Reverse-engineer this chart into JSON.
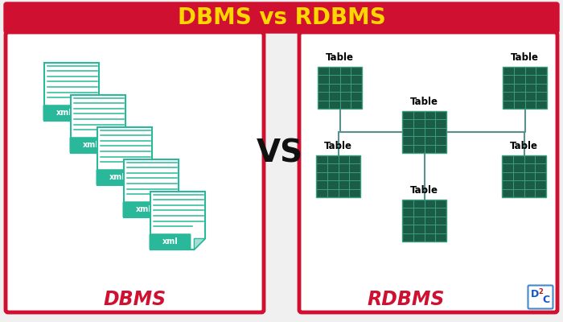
{
  "title": "DBMS vs RDBMS",
  "title_color": "#FFD700",
  "title_bg_color": "#D01030",
  "bg_color": "#F0F0F0",
  "panel_bg": "#FFFFFF",
  "panel_border_color": "#D01030",
  "dbms_label": "DBMS",
  "rdbms_label": "RDBMS",
  "label_color": "#D01030",
  "vs_color": "#111111",
  "xml_bg": "#29B899",
  "xml_text": "#FFFFFF",
  "doc_body_color": "#FFFFFF",
  "doc_edge_color": "#29B899",
  "doc_fold_color": "#A8DDD5",
  "doc_line_color": "#29B899",
  "table_dark": "#1B5C46",
  "table_grid": "#3A9E7E",
  "connector_color": "#5A9090",
  "d2c_border": "#4488CC",
  "d2c_blue": "#1155CC",
  "d2c_red": "#CC1111"
}
